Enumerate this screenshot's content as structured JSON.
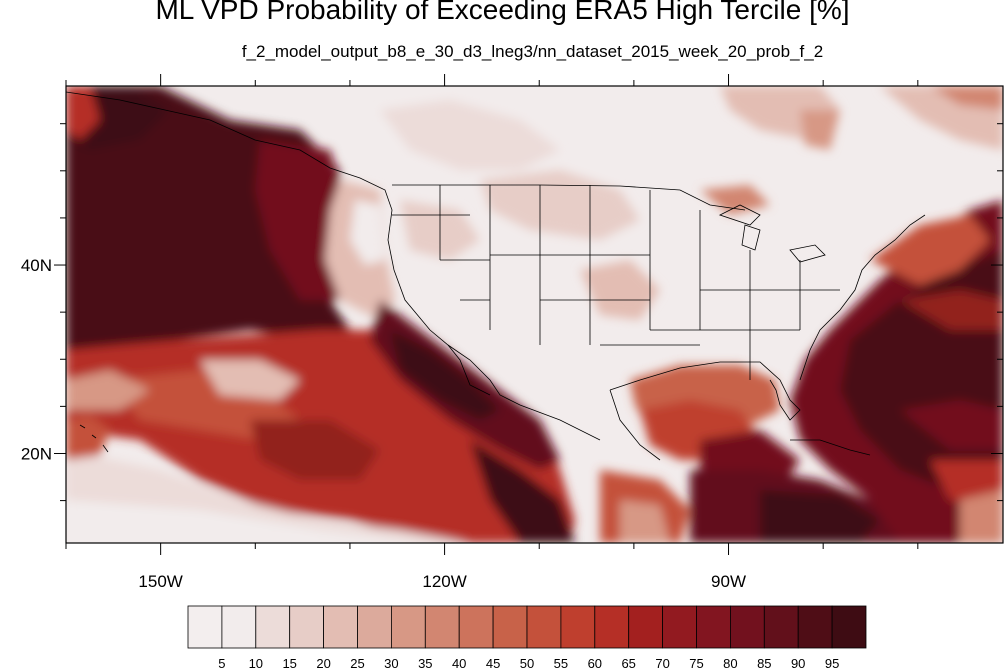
{
  "title": "ML VPD Probability of Exceeding ERA5 High Tercile [%]",
  "subtitle": "f_2_model_output_b8_e_30_d3_lneg3/nn_dataset_2015_week_20_prob_f_2",
  "map": {
    "lon_range": [
      -160,
      -61
    ],
    "lat_range": [
      10.5,
      59
    ],
    "lon_ticks": [
      {
        "value": -150,
        "label": "150W"
      },
      {
        "value": -120,
        "label": "120W"
      },
      {
        "value": -90,
        "label": "90W"
      }
    ],
    "lat_ticks": [
      {
        "value": 40,
        "label": "40N"
      },
      {
        "value": 20,
        "label": "20N"
      }
    ],
    "boundaries": "US states, Canada, Mexico coastlines"
  },
  "colorbar": {
    "labels": [
      "5",
      "10",
      "15",
      "20",
      "25",
      "30",
      "35",
      "40",
      "45",
      "50",
      "55",
      "60",
      "65",
      "70",
      "75",
      "80",
      "85",
      "90",
      "95"
    ],
    "colors": [
      "#f2ecec",
      "#ecdcd9",
      "#e7cdc7",
      "#e3bdb3",
      "#dcaa9c",
      "#d79885",
      "#d28671",
      "#cd735c",
      "#c86249",
      "#c4513b",
      "#bf3f2e",
      "#b52f26",
      "#a3201f",
      "#921a20",
      "#821520",
      "#72111e",
      "#62101b",
      "#4f0d16",
      "#3e0c13"
    ]
  }
}
